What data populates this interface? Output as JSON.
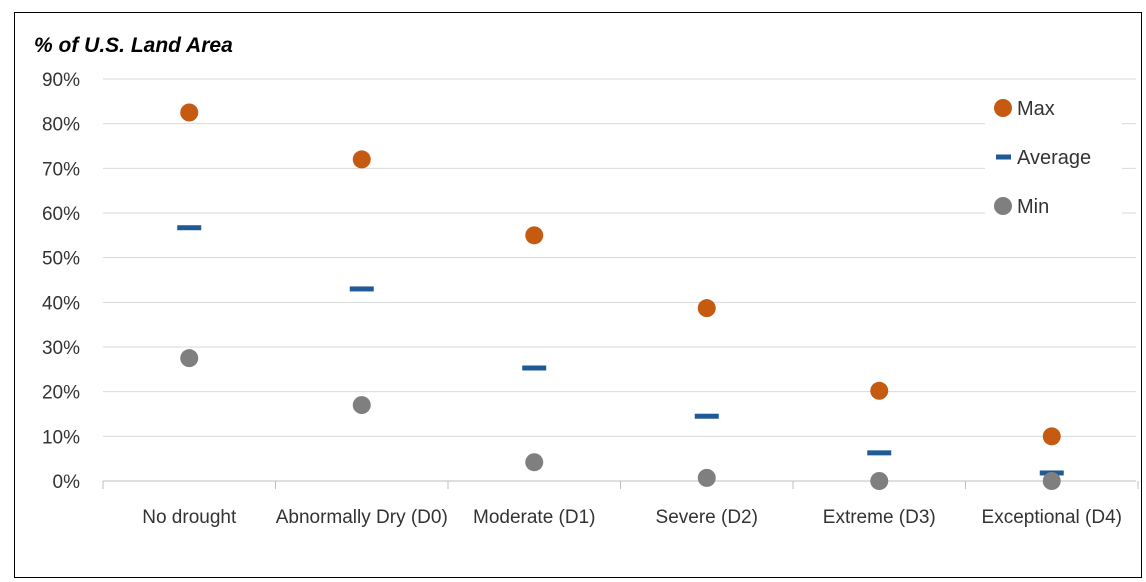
{
  "chart_data": {
    "type": "scatter",
    "ylabel": "% of U.S. Land Area",
    "ylim": [
      0,
      90
    ],
    "yticks": [
      "0%",
      "10%",
      "20%",
      "30%",
      "40%",
      "50%",
      "60%",
      "70%",
      "80%",
      "90%"
    ],
    "grid": true,
    "legend_position": "top-right",
    "categories": [
      "No drought",
      "Abnormally Dry (D0)",
      "Moderate (D1)",
      "Severe (D2)",
      "Extreme (D3)",
      "Exceptional (D4)"
    ],
    "series": [
      {
        "name": "Max",
        "marker": "circle",
        "color": "#C55A11",
        "values": [
          82.5,
          72,
          55,
          38.7,
          20.2,
          10
        ]
      },
      {
        "name": "Average",
        "marker": "dash",
        "color": "#1F5A96",
        "values": [
          56.7,
          43,
          25.3,
          14.5,
          6.3,
          1.8
        ]
      },
      {
        "name": "Min",
        "marker": "circle",
        "color": "#7F7F7F",
        "values": [
          27.5,
          17,
          4.2,
          0.7,
          0,
          0
        ]
      }
    ]
  }
}
